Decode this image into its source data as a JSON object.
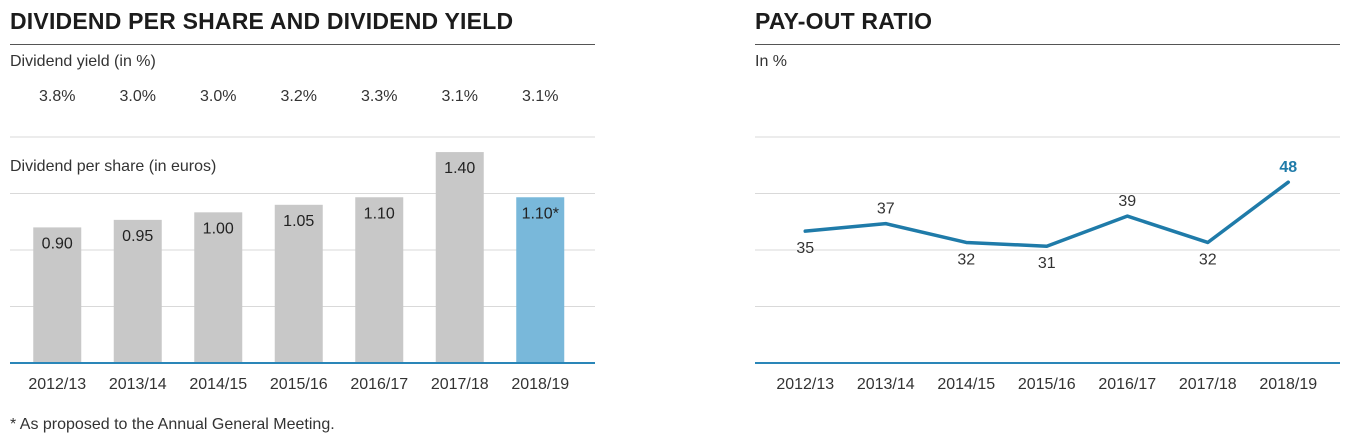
{
  "left": {
    "title": "DIVIDEND PER SHARE AND DIVIDEND YIELD",
    "yield_label": "Dividend yield (in %)",
    "dps_label": "Dividend per share (in euros)"
  },
  "right": {
    "title": "PAY-OUT RATIO",
    "unit_label": "In %"
  },
  "footnote": "* As proposed to the Annual General Meeting.",
  "colors": {
    "bar_gray": "#c8c8c8",
    "bar_highlight": "#79b8da",
    "axis_blue": "#2a86b8",
    "line_blue": "#1f7ba9",
    "grid": "#d9d9d9"
  },
  "chart_data": [
    {
      "type": "table",
      "title": "Dividend yield (in %)",
      "categories": [
        "2012/13",
        "2013/14",
        "2014/15",
        "2015/16",
        "2016/17",
        "2017/18",
        "2018/19"
      ],
      "values": [
        "3.8%",
        "3.0%",
        "3.0%",
        "3.2%",
        "3.3%",
        "3.1%",
        "3.1%"
      ]
    },
    {
      "type": "bar",
      "title": "DIVIDEND PER SHARE AND DIVIDEND YIELD",
      "subtitle": "Dividend per share (in euros)",
      "categories": [
        "2012/13",
        "2013/14",
        "2014/15",
        "2015/16",
        "2016/17",
        "2017/18",
        "2018/19"
      ],
      "values": [
        0.9,
        0.95,
        1.0,
        1.05,
        1.1,
        1.4,
        1.1
      ],
      "value_labels": [
        "0.90",
        "0.95",
        "1.00",
        "1.05",
        "1.10",
        "1.40",
        "1.10*"
      ],
      "highlight_index": 6,
      "ylim": [
        0,
        1.5
      ],
      "grid": true
    },
    {
      "type": "line",
      "title": "PAY-OUT RATIO",
      "ylabel": "In %",
      "categories": [
        "2012/13",
        "2013/14",
        "2014/15",
        "2015/16",
        "2016/17",
        "2017/18",
        "2018/19"
      ],
      "values": [
        35,
        37,
        32,
        31,
        39,
        32,
        48
      ],
      "value_labels": [
        "35",
        "37",
        "32",
        "31",
        "39",
        "32",
        "48"
      ],
      "label_position": [
        "below",
        "above",
        "below",
        "below",
        "above",
        "below",
        "above"
      ],
      "emphasized_index": 6,
      "ylim": [
        0,
        60
      ],
      "grid": true
    }
  ]
}
